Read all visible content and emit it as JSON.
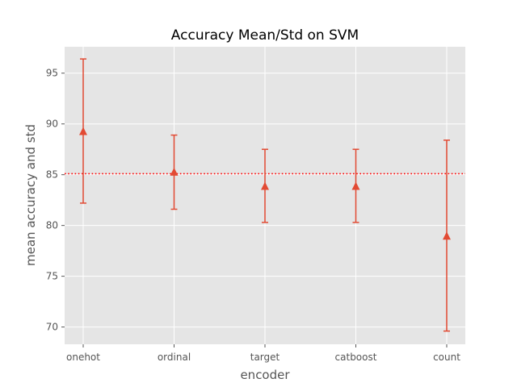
{
  "chart_data": {
    "type": "scatter",
    "title": "Accuracy Mean/Std on SVM",
    "xlabel": "encoder",
    "ylabel": "mean accuracy and std",
    "categories": [
      "onehot",
      "ordinal",
      "target",
      "catboost",
      "count"
    ],
    "series": [
      {
        "values": [
          89.3,
          85.3,
          83.9,
          83.9,
          79.0
        ],
        "err_low": [
          82.2,
          81.6,
          80.3,
          80.3,
          69.6
        ],
        "err_high": [
          96.4,
          88.9,
          87.5,
          87.5,
          88.4
        ],
        "marker": "triangle",
        "color": "#E24A33"
      }
    ],
    "reference_line": {
      "y": 85.1,
      "style": "dotted",
      "color": "#FF0000"
    },
    "ylim": [
      68.3,
      97.6
    ],
    "yticks": [
      70,
      75,
      80,
      85,
      90,
      95
    ],
    "grid": true,
    "background": "#E5E5E5"
  }
}
